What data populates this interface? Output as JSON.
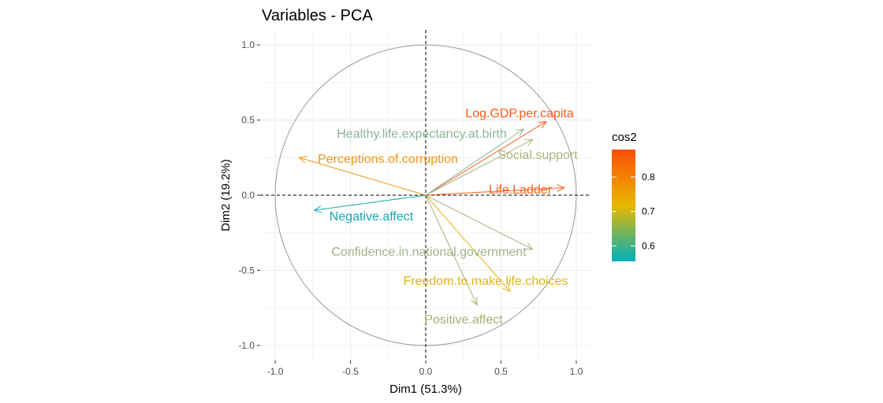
{
  "chart_data": {
    "type": "scatter",
    "title": "Variables - PCA",
    "xlabel": "Dim1 (51.3%)",
    "ylabel": "Dim2 (19.2%)",
    "xlim": [
      -1.1,
      1.1
    ],
    "ylim": [
      -1.1,
      1.1
    ],
    "x_ticks": [
      -1.0,
      -0.5,
      0.0,
      0.5,
      1.0
    ],
    "x_tick_labels": [
      "-1.0",
      "-0.5",
      "0.0",
      "0.5",
      "1.0"
    ],
    "y_ticks": [
      -1.0,
      -0.5,
      0.0,
      0.5,
      1.0
    ],
    "y_tick_labels": [
      "-1.0",
      "-0.5",
      "0.0",
      "0.5",
      "1.0"
    ],
    "grid": true,
    "correlation_circle": true,
    "legend": {
      "title": "cos2",
      "placement": "right",
      "range": [
        0.555,
        0.88
      ],
      "ticks": [
        0.6,
        0.7,
        0.8
      ],
      "tick_labels": [
        "0.6",
        "0.7",
        "0.8"
      ],
      "colors": [
        "#00AFBB",
        "#E7B800",
        "#FC4E07"
      ]
    },
    "variables": [
      {
        "name": "Log.GDP.per.capita",
        "x": 0.8,
        "y": 0.49,
        "cos2": 0.88,
        "color": "#F8591A"
      },
      {
        "name": "Healthy.life.expectancy.at.birth",
        "x": 0.65,
        "y": 0.44,
        "cos2": 0.62,
        "color": "#8DB494"
      },
      {
        "name": "Social.support",
        "x": 0.71,
        "y": 0.37,
        "cos2": 0.64,
        "color": "#A9B47A"
      },
      {
        "name": "Perceptions.of.corruption",
        "x": -0.84,
        "y": 0.25,
        "cos2": 0.77,
        "color": "#F09416"
      },
      {
        "name": "Life.Ladder",
        "x": 0.92,
        "y": 0.05,
        "cos2": 0.86,
        "color": "#F6621A"
      },
      {
        "name": "Negative.affect",
        "x": -0.74,
        "y": -0.1,
        "cos2": 0.56,
        "color": "#13AAB4"
      },
      {
        "name": "Confidence.in.national.government",
        "x": 0.71,
        "y": -0.36,
        "cos2": 0.63,
        "color": "#9EB386"
      },
      {
        "name": "Freedom.to.make.life.choices",
        "x": 0.56,
        "y": -0.64,
        "cos2": 0.72,
        "color": "#E3B316"
      },
      {
        "name": "Positive.affect",
        "x": 0.34,
        "y": -0.73,
        "cos2": 0.65,
        "color": "#A8AF72"
      }
    ]
  }
}
